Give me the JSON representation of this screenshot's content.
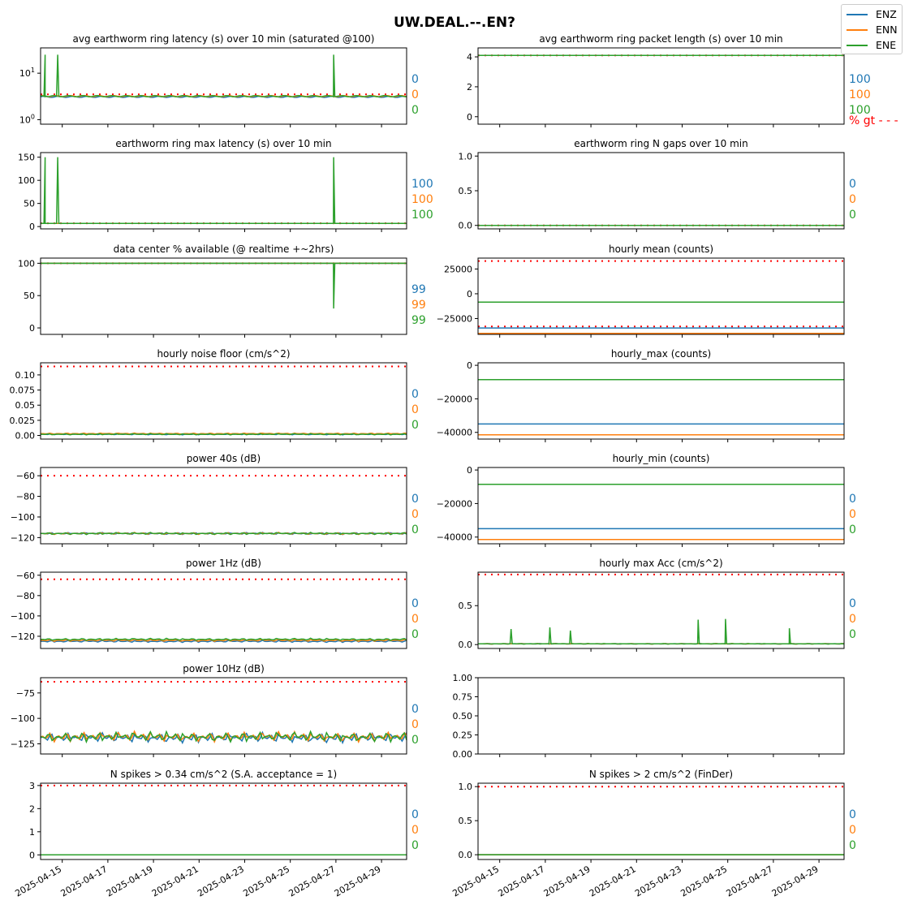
{
  "suptitle": "UW.DEAL.--.EN?",
  "colors": {
    "ENZ": "#1f77b4",
    "ENN": "#ff7f0e",
    "ENE": "#2ca02c",
    "threshold": "#ff0000"
  },
  "legend": [
    "ENZ",
    "ENN",
    "ENE"
  ],
  "x_tick_labels": [
    "2025-04-15",
    "2025-04-17",
    "2025-04-19",
    "2025-04-21",
    "2025-04-23",
    "2025-04-25",
    "2025-04-27",
    "2025-04-29"
  ],
  "chart_data": [
    {
      "type": "line",
      "title": "avg earthworm ring latency (s)   over 10 min (saturated @100)",
      "yscale": "log",
      "ylim": [
        0.8,
        35
      ],
      "yticks": [
        1,
        10
      ],
      "ytick_labels": [
        "10^0",
        "10^1"
      ],
      "threshold": 3.5,
      "baseline": {
        "ENZ": 3.1,
        "ENN": 3.2,
        "ENE": 3.2
      },
      "spikes": [
        {
          "date": "2025-04-14.25",
          "value": 25
        },
        {
          "date": "2025-04-14.8",
          "value": 25
        },
        {
          "date": "2025-04-26.9",
          "value": 25
        }
      ],
      "pct": [
        "0",
        "0",
        "0"
      ]
    },
    {
      "type": "line",
      "title": "avg earthworm ring packet length (s)   over 10 min",
      "ylim": [
        -0.5,
        4.6
      ],
      "yticks": [
        0,
        2,
        4
      ],
      "threshold": 4.1,
      "baseline": {
        "ENZ": 4.1,
        "ENN": 4.1,
        "ENE": 4.1
      },
      "pct": [
        "100",
        "100",
        "100"
      ],
      "pct_label": "% gt - - -"
    },
    {
      "type": "line",
      "title": "earthworm ring max latency (s)   over 10 min",
      "ylim": [
        -5,
        160
      ],
      "yticks": [
        0,
        50,
        100,
        150
      ],
      "threshold": 7,
      "baseline": {
        "ENZ": 7,
        "ENN": 7,
        "ENE": 7
      },
      "spikes": [
        {
          "date": "2025-04-14.25",
          "value": 150
        },
        {
          "date": "2025-04-14.8",
          "value": 150
        },
        {
          "date": "2025-04-26.9",
          "value": 150
        }
      ],
      "pct": [
        "100",
        "100",
        "100"
      ]
    },
    {
      "type": "line",
      "title": "earthworm ring N gaps   over 10 min",
      "ylim": [
        -0.05,
        1.05
      ],
      "yticks": [
        0,
        0.5,
        1
      ],
      "ytick_labels": [
        "0.0",
        "0.5",
        "1.0"
      ],
      "threshold": 0,
      "baseline": {
        "ENZ": 0,
        "ENN": 0,
        "ENE": 0
      },
      "pct": [
        "0",
        "0",
        "0"
      ]
    },
    {
      "type": "line",
      "title": "data center % available (@ realtime +~2hrs)",
      "ylim": [
        -10,
        108
      ],
      "yticks": [
        0,
        50,
        100
      ],
      "threshold": 100,
      "baseline": {
        "ENZ": 100,
        "ENN": 100,
        "ENE": 100
      },
      "spikes": [
        {
          "date": "2025-04-26.9",
          "value": 30
        }
      ],
      "pct": [
        "99",
        "99",
        "99"
      ]
    },
    {
      "type": "line",
      "title": "hourly mean (counts)",
      "ylim": [
        -41000,
        36000
      ],
      "yticks": [
        -25000,
        0,
        25000
      ],
      "thresholds": [
        33000,
        -33000
      ],
      "baseline": {
        "ENZ": -34500,
        "ENN": -40000,
        "ENE": -8500
      },
      "pct": [
        "",
        "",
        " "
      ]
    },
    {
      "type": "line",
      "title": "hourly noise floor (cm/s^2)",
      "ylim": [
        -0.006,
        0.12
      ],
      "yticks": [
        0,
        0.025,
        0.05,
        0.075,
        0.1
      ],
      "ytick_labels": [
        "0.00",
        "0.025",
        "0.05",
        "0.075",
        "0.10"
      ],
      "threshold": 0.114,
      "baseline": {
        "ENZ": 0.002,
        "ENN": 0.003,
        "ENE": 0.002
      },
      "pct": [
        "0",
        "0",
        "0"
      ]
    },
    {
      "type": "line",
      "title": "hourly_max (counts)",
      "ylim": [
        -44000,
        1500
      ],
      "yticks": [
        -40000,
        -20000,
        0
      ],
      "baseline": {
        "ENZ": -35000,
        "ENN": -41500,
        "ENE": -8500
      },
      "pct": [
        "",
        "",
        ""
      ]
    },
    {
      "type": "line",
      "title": "power 40s (dB)",
      "ylim": [
        -126,
        -52
      ],
      "yticks": [
        -120,
        -100,
        -80,
        -60
      ],
      "threshold": -60,
      "baseline": {
        "ENZ": -116,
        "ENN": -116,
        "ENE": -116
      },
      "pct": [
        "0",
        "0",
        "0"
      ]
    },
    {
      "type": "line",
      "title": "hourly_min (counts)",
      "ylim": [
        -44000,
        1500
      ],
      "yticks": [
        -40000,
        -20000,
        0
      ],
      "baseline": {
        "ENZ": -35000,
        "ENN": -41500,
        "ENE": -8500
      },
      "pct": [
        "0",
        "0",
        "0"
      ]
    },
    {
      "type": "line",
      "title": "power 1Hz (dB)",
      "ylim": [
        -132,
        -57
      ],
      "yticks": [
        -120,
        -100,
        -80,
        -60
      ],
      "threshold": -64,
      "baseline": {
        "ENZ": -125,
        "ENN": -124,
        "ENE": -123
      },
      "pct": [
        "0",
        "0",
        "0"
      ]
    },
    {
      "type": "line",
      "title": "hourly max Acc (cm/s^2)",
      "ylim": [
        -0.05,
        0.93
      ],
      "yticks": [
        0,
        0.5
      ],
      "ytick_labels": [
        "0.0",
        "0.5"
      ],
      "threshold": 0.9,
      "baseline": {
        "ENZ": 0.01,
        "ENN": 0.01,
        "ENE": 0.01
      },
      "spikes": [
        {
          "date": "2025-04-15.5",
          "value": 0.2
        },
        {
          "date": "2025-04-17.2",
          "value": 0.22
        },
        {
          "date": "2025-04-18.1",
          "value": 0.18
        },
        {
          "date": "2025-04-23.7",
          "value": 0.32
        },
        {
          "date": "2025-04-24.9",
          "value": 0.33
        },
        {
          "date": "2025-04-27.7",
          "value": 0.21
        }
      ],
      "pct": [
        "0",
        "0",
        "0"
      ]
    },
    {
      "type": "line",
      "title": "power 10Hz (dB)",
      "ylim": [
        -135,
        -60
      ],
      "yticks": [
        -125,
        -100,
        -75
      ],
      "threshold": -64,
      "baseline": {
        "ENZ": -119,
        "ENN": -118,
        "ENE": -118
      },
      "pct": [
        "0",
        "0",
        "0"
      ]
    },
    {
      "type": "empty",
      "title": "",
      "ylim": [
        0,
        1
      ],
      "yticks": [
        0,
        0.25,
        0.5,
        0.75,
        1
      ],
      "ytick_labels": [
        "0.00",
        "0.25",
        "0.50",
        "0.75",
        "1.00"
      ]
    },
    {
      "type": "line",
      "title": "N spikes > 0.34 cm/s^2 (S.A. acceptance = 1)",
      "ylim": [
        -0.2,
        3.1
      ],
      "yticks": [
        0,
        1,
        2,
        3
      ],
      "threshold": 3,
      "baseline": {
        "ENZ": 0,
        "ENN": 0,
        "ENE": 0
      },
      "pct": [
        "0",
        "0",
        "0"
      ]
    },
    {
      "type": "line",
      "title": "N spikes > 2 cm/s^2 (FinDer)",
      "ylim": [
        -0.07,
        1.05
      ],
      "yticks": [
        0,
        0.5,
        1
      ],
      "ytick_labels": [
        "0.0",
        "0.5",
        "1.0"
      ],
      "threshold": 1,
      "baseline": {
        "ENZ": 0,
        "ENN": 0,
        "ENE": 0
      },
      "pct": [
        "0",
        "0",
        "0"
      ]
    }
  ]
}
